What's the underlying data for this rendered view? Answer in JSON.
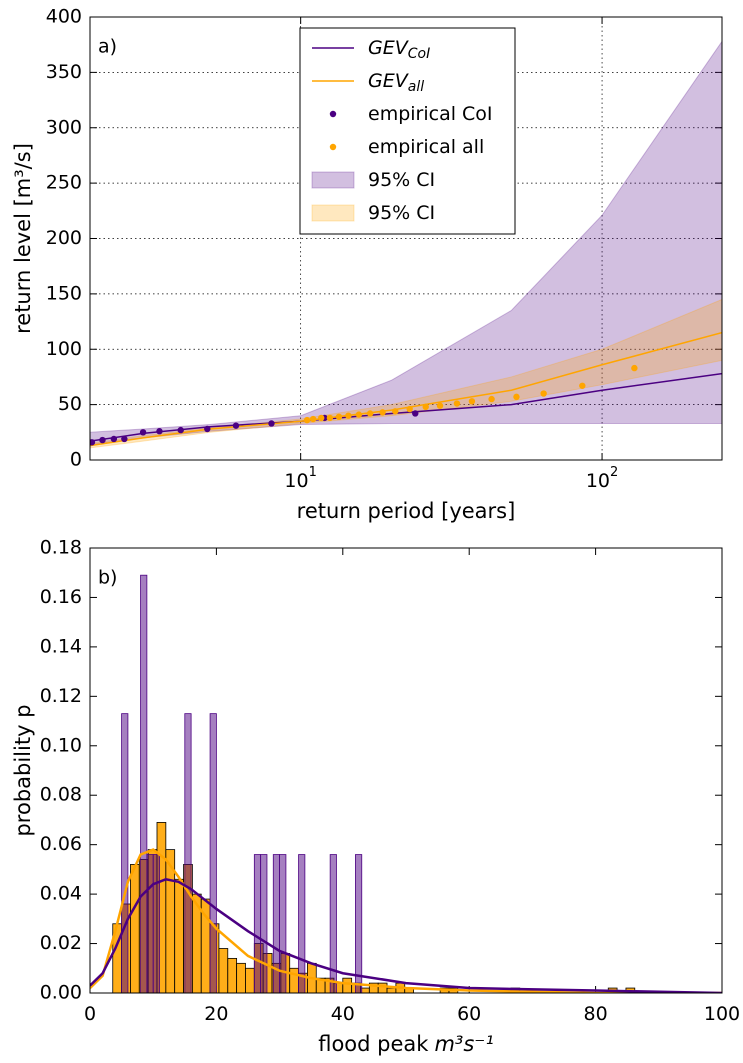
{
  "chart_data": [
    {
      "type": "line",
      "label": "a)",
      "x_label": "return period [years]",
      "y_label": "return level [m³/s]",
      "xscale": "log",
      "xlim": [
        2,
        250
      ],
      "ylim": [
        0,
        400
      ],
      "xticks": [
        {
          "value": 10,
          "label": "10",
          "exponent": "1"
        },
        {
          "value": 100,
          "label": "10",
          "exponent": "2"
        }
      ],
      "yticks": [
        0,
        50,
        100,
        150,
        200,
        250,
        300,
        350,
        400
      ],
      "grid": true,
      "legend": "upper center",
      "series": [
        {
          "name": "GEV",
          "name_sub": "CoI",
          "kind": "line",
          "color": "#4b0082",
          "x": [
            2,
            3,
            5,
            10,
            20,
            50,
            100,
            250
          ],
          "values": [
            17,
            24,
            30,
            35,
            42,
            50,
            63,
            78
          ]
        },
        {
          "name": "GEV",
          "name_sub": "all",
          "kind": "line",
          "color": "#ffa500",
          "x": [
            2,
            3,
            5,
            10,
            20,
            50,
            100,
            250
          ],
          "values": [
            13,
            20,
            28,
            35,
            45,
            63,
            86,
            115
          ]
        },
        {
          "name": "empirical CoI",
          "kind": "scatter",
          "color": "#4b0082",
          "x": [
            2.03,
            2.2,
            2.4,
            2.6,
            3.0,
            3.4,
            4.0,
            4.9,
            6.1,
            8.0,
            12,
            24
          ],
          "values": [
            16,
            18,
            19,
            19,
            25,
            26,
            27,
            28,
            31,
            33,
            38,
            42
          ]
        },
        {
          "name": "empirical all",
          "kind": "scatter",
          "color": "#ffa500",
          "x": [
            10.5,
            11,
            11.7,
            12.5,
            13.4,
            14.4,
            15.6,
            17,
            18.7,
            20.6,
            23,
            26,
            29,
            33,
            37,
            43,
            52,
            64,
            86,
            128
          ],
          "values": [
            36,
            37,
            38,
            38,
            39,
            40,
            41,
            42,
            43,
            44,
            46,
            48,
            49,
            51,
            53,
            55,
            57,
            60,
            67,
            83
          ]
        },
        {
          "name": "95% CI",
          "kind": "band",
          "color": "#4b0082",
          "alpha": 0.25,
          "x": [
            2,
            3,
            5,
            10,
            20,
            50,
            100,
            250
          ],
          "lower": [
            14,
            20,
            26,
            32,
            33,
            33,
            33,
            33
          ],
          "upper": [
            25,
            28,
            32,
            40,
            72,
            135,
            221,
            378
          ]
        },
        {
          "name": "95% CI",
          "kind": "band",
          "color": "#ffa500",
          "alpha": 0.25,
          "x": [
            2,
            3,
            5,
            10,
            20,
            50,
            100,
            250
          ],
          "lower": [
            11,
            17,
            25,
            33,
            40,
            53,
            68,
            90
          ],
          "upper": [
            15,
            22,
            29,
            37,
            50,
            75,
            100,
            145
          ]
        }
      ]
    },
    {
      "type": "histogram",
      "label": "b)",
      "x_label": "flood peak",
      "x_label_unit": "m³s⁻¹",
      "y_label": "probability p",
      "xlim": [
        0,
        100
      ],
      "ylim": [
        0,
        0.18
      ],
      "xticks": [
        0,
        20,
        40,
        60,
        80,
        100
      ],
      "yticks": [
        {
          "value": 0,
          "label": "0.00"
        },
        {
          "value": 0.02,
          "label": "0.02"
        },
        {
          "value": 0.04,
          "label": "0.04"
        },
        {
          "value": 0.06,
          "label": "0.06"
        },
        {
          "value": 0.08,
          "label": "0.08"
        },
        {
          "value": 0.1,
          "label": "0.10"
        },
        {
          "value": 0.12,
          "label": "0.12"
        },
        {
          "value": 0.14,
          "label": "0.14"
        },
        {
          "value": 0.16,
          "label": "0.16"
        },
        {
          "value": 0.18,
          "label": "0.18"
        }
      ],
      "grid": false,
      "series": [
        {
          "kind": "histogram",
          "color": "#ffa500",
          "alpha": 0.9,
          "bins": [
            3.6,
            5.0,
            6.4,
            7.8,
            9.2,
            10.6,
            12.0,
            13.4,
            14.8,
            16.2,
            17.6,
            19.0,
            20.4,
            21.8,
            23.2,
            24.6,
            26.0,
            27.4,
            28.8,
            30.2,
            31.6,
            33.0,
            34.4,
            35.8,
            37.2,
            38.6,
            40.0,
            41.4,
            42.8,
            44.2,
            45.6,
            47.0,
            48.4,
            49.8,
            51.2,
            52.6,
            54.0,
            55.4,
            56.8,
            58.2,
            59.6,
            61.0,
            62.4,
            63.8,
            65.2,
            66.6,
            68.0,
            69.4,
            70.8,
            72.2,
            73.6,
            75.0,
            76.4,
            77.8,
            79.2,
            80.6,
            82.0,
            83.4,
            84.8,
            86.2,
            87.6
          ],
          "values": [
            0.028,
            0.036,
            0.052,
            0.054,
            0.058,
            0.069,
            0.058,
            0.046,
            0.052,
            0.04,
            0.038,
            0.028,
            0.018,
            0.014,
            0.012,
            0.01,
            0.02,
            0.016,
            0.012,
            0.016,
            0.01,
            0.008,
            0.012,
            0.006,
            0.006,
            0.004,
            0.006,
            0.004,
            0.002,
            0.004,
            0.004,
            0.002,
            0.004,
            0.002,
            0,
            0,
            0,
            0.002,
            0.002,
            0,
            0,
            0,
            0,
            0,
            0,
            0.002,
            0,
            0,
            0,
            0,
            0,
            0,
            0,
            0,
            0,
            0,
            0.002,
            0,
            0.002,
            0
          ]
        },
        {
          "kind": "histogram",
          "color": "#4b0082",
          "alpha": 0.5,
          "bins": [
            4,
            5,
            6,
            7,
            8,
            9,
            10,
            11,
            12,
            13,
            14,
            15,
            16,
            17,
            18,
            19,
            20,
            21,
            22,
            23,
            24,
            25,
            26,
            27,
            28,
            29,
            30,
            31,
            32,
            33,
            34,
            35,
            36,
            37,
            38,
            39,
            40,
            41,
            42,
            43,
            44
          ],
          "values": [
            0,
            0.113,
            0,
            0,
            0.169,
            0.056,
            0.056,
            0,
            0,
            0,
            0,
            0.113,
            0,
            0,
            0,
            0.113,
            0,
            0,
            0,
            0,
            0,
            0,
            0.056,
            0.056,
            0,
            0.056,
            0.056,
            0,
            0,
            0.056,
            0,
            0,
            0,
            0,
            0.056,
            0,
            0,
            0,
            0.056,
            0
          ]
        },
        {
          "kind": "line",
          "color": "#ffa500",
          "width": 2.5,
          "x": [
            0,
            2,
            4,
            6,
            8,
            10,
            12,
            14,
            16,
            18,
            20,
            25,
            30,
            35,
            40,
            50,
            60,
            80,
            100
          ],
          "values": [
            0.002,
            0.007,
            0.025,
            0.045,
            0.056,
            0.058,
            0.054,
            0.047,
            0.039,
            0.032,
            0.026,
            0.015,
            0.009,
            0.006,
            0.004,
            0.002,
            0.001,
            0,
            0
          ]
        },
        {
          "kind": "line",
          "color": "#4b0082",
          "width": 2.5,
          "x": [
            0,
            2,
            4,
            6,
            8,
            10,
            12,
            14,
            16,
            18,
            20,
            25,
            30,
            35,
            40,
            50,
            60,
            80,
            100
          ],
          "values": [
            0.003,
            0.008,
            0.018,
            0.03,
            0.039,
            0.044,
            0.046,
            0.045,
            0.042,
            0.038,
            0.034,
            0.025,
            0.017,
            0.012,
            0.008,
            0.004,
            0.002,
            0.001,
            0
          ]
        }
      ]
    }
  ]
}
